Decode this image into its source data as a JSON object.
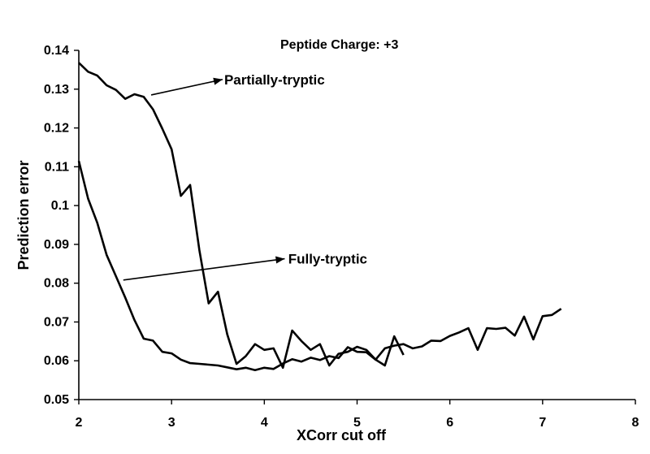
{
  "chart_data": {
    "type": "line",
    "title": "Peptide Charge: +3",
    "xlabel": "XCorr cut off",
    "ylabel": "Prediction error",
    "xlim": [
      2,
      8
    ],
    "ylim": [
      0.05,
      0.14
    ],
    "xticks": [
      "2",
      "3",
      "4",
      "5",
      "6",
      "7",
      "8"
    ],
    "yticks": [
      "0.05",
      "0.06",
      "0.07",
      "0.08",
      "0.09",
      "0.1",
      "0.11",
      "0.12",
      "0.13",
      "0.14"
    ],
    "grid": false,
    "series": [
      {
        "name": "Partially-tryptic",
        "x": [
          2.0,
          2.1,
          2.2,
          2.3,
          2.4,
          2.5,
          2.6,
          2.7,
          2.8,
          2.9,
          3.0,
          3.1,
          3.2,
          3.3,
          3.4,
          3.5,
          3.6,
          3.7,
          3.8,
          3.9,
          4.0,
          4.1,
          4.2,
          4.3,
          4.4,
          4.5,
          4.6,
          4.7,
          4.8,
          4.9,
          5.0,
          5.1,
          5.2,
          5.3,
          5.4,
          5.5
        ],
        "values": [
          0.1368,
          0.1345,
          0.1335,
          0.131,
          0.1298,
          0.1275,
          0.1287,
          0.128,
          0.1248,
          0.1198,
          0.1145,
          0.1025,
          0.1053,
          0.0885,
          0.0748,
          0.0778,
          0.0668,
          0.0592,
          0.0612,
          0.0643,
          0.0628,
          0.0632,
          0.0582,
          0.0678,
          0.0651,
          0.0628,
          0.0643,
          0.0588,
          0.0618,
          0.0623,
          0.0636,
          0.0628,
          0.0603,
          0.0588,
          0.0663,
          0.0615
        ]
      },
      {
        "name": "Fully-tryptic",
        "x": [
          2.0,
          2.1,
          2.2,
          2.3,
          2.4,
          2.5,
          2.6,
          2.7,
          2.8,
          2.9,
          3.0,
          3.1,
          3.2,
          3.3,
          3.4,
          3.5,
          3.6,
          3.7,
          3.8,
          3.9,
          4.0,
          4.1,
          4.2,
          4.3,
          4.4,
          4.5,
          4.6,
          4.7,
          4.8,
          4.9,
          5.0,
          5.1,
          5.2,
          5.3,
          5.4,
          5.5,
          5.6,
          5.7,
          5.8,
          5.9,
          6.0,
          6.1,
          6.2,
          6.3,
          6.4,
          6.5,
          6.6,
          6.7,
          6.8,
          6.9,
          7.0,
          7.1,
          7.2
        ],
        "values": [
          0.1115,
          0.1018,
          0.0955,
          0.0873,
          0.0818,
          0.0763,
          0.0705,
          0.0657,
          0.0652,
          0.0623,
          0.0619,
          0.0603,
          0.0594,
          0.0592,
          0.059,
          0.0588,
          0.0583,
          0.0578,
          0.0582,
          0.0576,
          0.0582,
          0.0579,
          0.0593,
          0.0604,
          0.0598,
          0.0608,
          0.0602,
          0.0612,
          0.0607,
          0.0635,
          0.0623,
          0.0622,
          0.0603,
          0.0632,
          0.0639,
          0.0643,
          0.0632,
          0.0637,
          0.0652,
          0.0651,
          0.0664,
          0.0673,
          0.0684,
          0.0628,
          0.0684,
          0.0682,
          0.0685,
          0.0665,
          0.0714,
          0.0655,
          0.0715,
          0.0718,
          0.0734
        ]
      }
    ],
    "annotations": [
      {
        "text": "Partially-tryptic",
        "arrow_from": [
          2.78,
          0.1285
        ],
        "arrow_to": [
          3.55,
          0.1325
        ],
        "text_at": [
          3.55,
          0.1325
        ]
      },
      {
        "text": "Fully-tryptic",
        "arrow_from": [
          2.48,
          0.0808
        ],
        "arrow_to": [
          4.22,
          0.0863
        ],
        "text_at": [
          4.24,
          0.0863
        ]
      }
    ]
  }
}
